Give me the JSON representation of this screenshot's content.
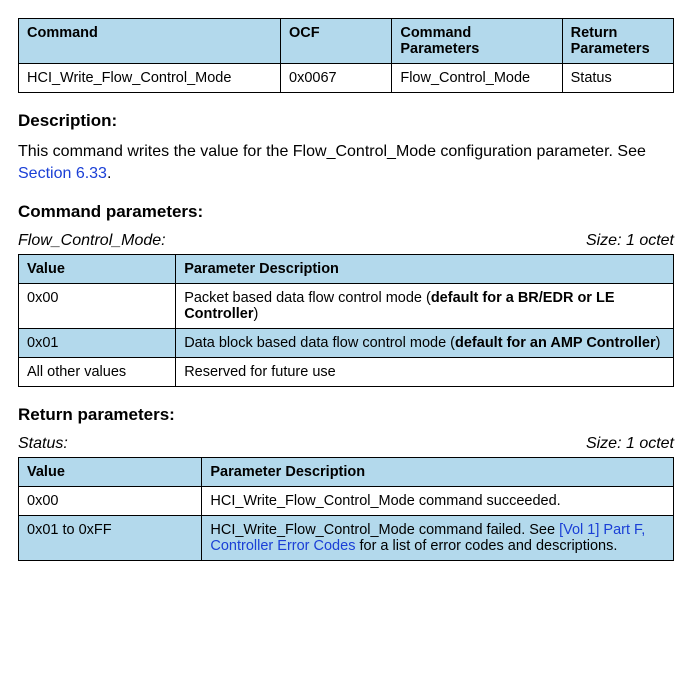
{
  "colors": {
    "header_bg": "#b3d9ec",
    "border": "#000000",
    "link": "#1a3fd6",
    "text": "#000000",
    "bg": "#ffffff"
  },
  "fonts": {
    "body_family": "Arial",
    "body_size_pt": 12,
    "heading_size_pt": 13,
    "italic_param_size_pt": 12
  },
  "summary_table": {
    "col_widths_pct": [
      40,
      17,
      26,
      17
    ],
    "columns": [
      "Command",
      "OCF",
      "Command Parameters",
      "Return Parameters"
    ],
    "rows": [
      [
        "HCI_Write_Flow_Control_Mode",
        "0x0067",
        "Flow_Control_Mode",
        "Status"
      ]
    ]
  },
  "description": {
    "heading": "Description:",
    "text_pre": "This command writes the value for the Flow_Control_Mode configuration parameter. See ",
    "link_text": "Section 6.33",
    "text_post": "."
  },
  "command_params": {
    "heading": "Command parameters:",
    "param_name": "Flow_Control_Mode:",
    "size_label": "Size: 1 octet",
    "table": {
      "col_widths_pct": [
        24,
        76
      ],
      "columns": [
        "Value",
        "Parameter Description"
      ],
      "rows": [
        {
          "value": "0x00",
          "desc_pre": "Packet based data flow control mode (",
          "desc_bold": "default for a BR/EDR or LE Controller",
          "desc_post": ")",
          "alt": false
        },
        {
          "value": "0x01",
          "desc_pre": "Data block based data flow control mode (",
          "desc_bold": "default for an AMP Controller",
          "desc_post": ")",
          "alt": true
        },
        {
          "value": "All other values",
          "desc_pre": "Reserved for future use",
          "desc_bold": "",
          "desc_post": "",
          "alt": false
        }
      ]
    }
  },
  "return_params": {
    "heading": "Return parameters:",
    "param_name": "Status:",
    "size_label": "Size: 1 octet",
    "table": {
      "col_widths_pct": [
        28,
        72
      ],
      "columns": [
        "Value",
        "Parameter Description"
      ],
      "rows": [
        {
          "value": "0x00",
          "desc_pre": "HCI_Write_Flow_Control_Mode command succeeded.",
          "link_text": "",
          "desc_post": "",
          "alt": false
        },
        {
          "value": "0x01 to 0xFF",
          "desc_pre": "HCI_Write_Flow_Control_Mode command failed. See ",
          "link_text": "[Vol 1] Part F, Controller Error Codes",
          "desc_post": " for a list of error codes and descriptions.",
          "alt": true
        }
      ]
    }
  }
}
